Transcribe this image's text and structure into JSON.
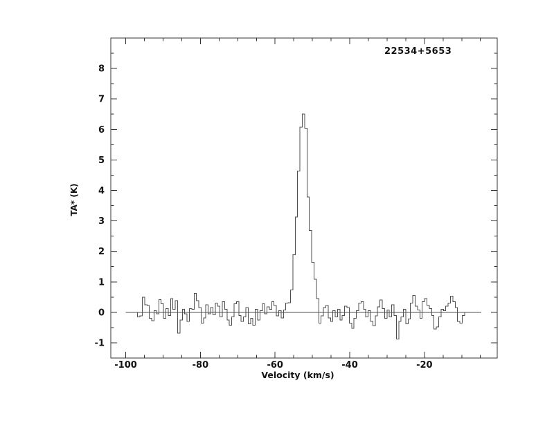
{
  "annotation": "22534+5653",
  "colors": {
    "background": "#ffffff",
    "axis": "#333333",
    "line": "#4d4d4d",
    "text": "#111111"
  },
  "chart_data": {
    "type": "line",
    "subtype": "histogram-step-spectrum",
    "source_label": "22534+5653",
    "xlabel": "Velocity (km/s)",
    "ylabel": "TA* (K)",
    "xlim": [
      -104,
      -0.5
    ],
    "ylim": [
      -1.5,
      9.0
    ],
    "x_major_ticks": [
      -100,
      -80,
      -60,
      -40,
      -20
    ],
    "x_minor_step": 5,
    "y_major_ticks": [
      -1,
      0,
      1,
      2,
      3,
      4,
      5,
      6,
      7,
      8
    ],
    "y_minor_step": 0.5,
    "grid": false,
    "legend": "none",
    "zero_baseline": {
      "y": 0,
      "from": -100,
      "to": -4.8
    },
    "peak": {
      "velocity": -52.4,
      "peak_ta": 6.5,
      "fwhm_kms": 3.4
    },
    "series": [
      {
        "name": "spectrum",
        "v_start": -96.5,
        "dv": 0.63,
        "values": [
          -0.15,
          -0.12,
          0.5,
          0.25,
          0.22,
          -0.2,
          -0.28,
          0.05,
          -0.05,
          0.42,
          0.28,
          -0.2,
          0.12,
          -0.1,
          0.45,
          0.1,
          0.38,
          -0.68,
          -0.25,
          0.1,
          -0.05,
          -0.3,
          0.12,
          0.1,
          0.62,
          0.38,
          0.15,
          -0.35,
          -0.18,
          0.25,
          -0.05,
          0.15,
          -0.08,
          0.3,
          0.2,
          -0.15,
          0.35,
          0.1,
          -0.25,
          -0.42,
          -0.15,
          0.28,
          0.35,
          -0.1,
          -0.3,
          -0.15,
          0.15,
          -0.38,
          -0.2,
          -0.42,
          0.1,
          -0.25,
          0.05,
          0.28,
          -0.05,
          0.18,
          0.1,
          0.35,
          0.22,
          -0.12,
          0.05,
          -0.18,
          0.08,
          0.3,
          0.32,
          0.73,
          1.89,
          3.13,
          4.64,
          6.08,
          6.5,
          6.04,
          3.78,
          2.68,
          1.64,
          1.09,
          0.45,
          -0.35,
          -0.12,
          0.15,
          0.22,
          -0.18,
          -0.3,
          0.05,
          -0.15,
          0.1,
          -0.25,
          -0.1,
          0.2,
          0.15,
          -0.35,
          -0.52,
          -0.2,
          0.05,
          0.3,
          0.35,
          0.1,
          -0.15,
          0.05,
          -0.3,
          -0.45,
          -0.12,
          0.18,
          0.4,
          0.12,
          -0.2,
          0.08,
          -0.15,
          0.25,
          -0.1,
          -0.88,
          -0.3,
          -0.15,
          0.1,
          -0.38,
          -0.22,
          0.3,
          0.55,
          0.2,
          0.08,
          -0.2,
          0.35,
          0.45,
          0.22,
          0.12,
          -0.1,
          -0.55,
          -0.48,
          -0.15,
          0.1,
          0.05,
          0.2,
          0.3,
          0.53,
          0.35,
          0.15,
          -0.3,
          -0.35,
          -0.1
        ]
      }
    ]
  }
}
